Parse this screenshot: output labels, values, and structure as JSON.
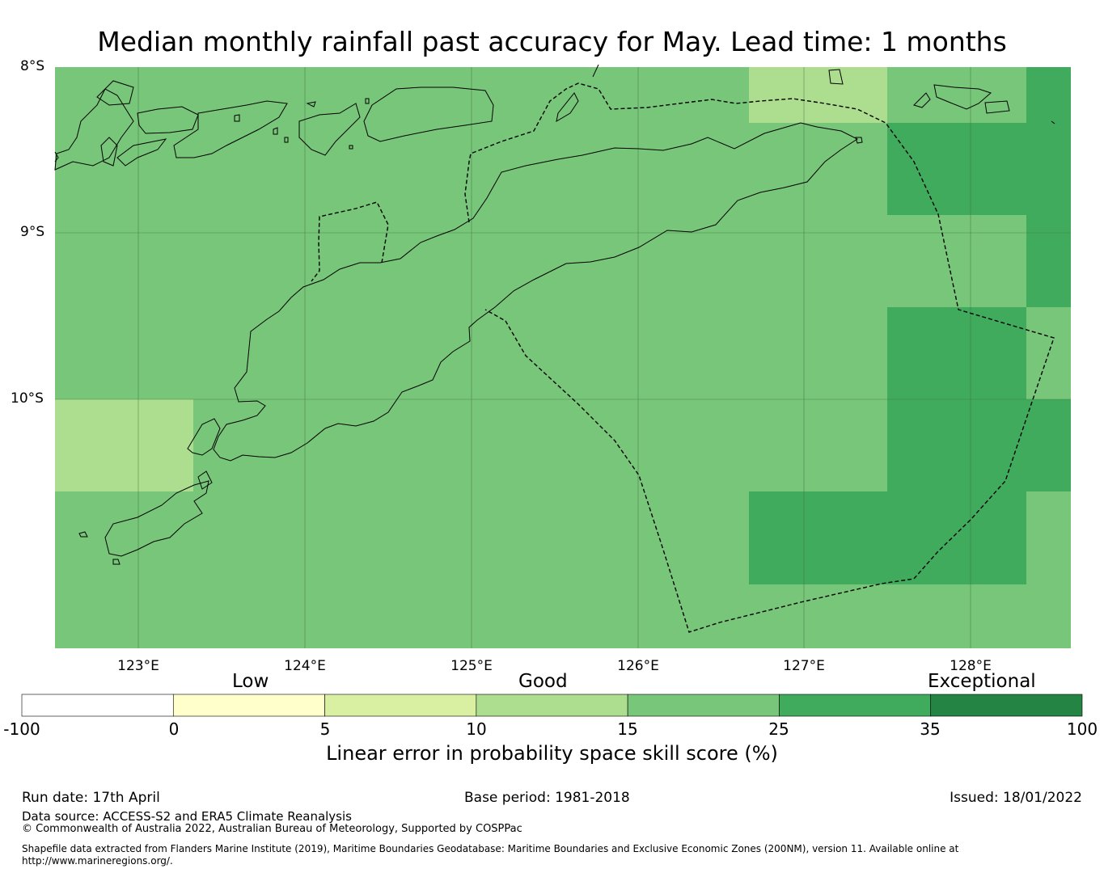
{
  "title": "Median monthly rainfall past accuracy for May. Lead time: 1 months",
  "map": {
    "lat_labels": [
      "8°S",
      "9°S",
      "10°S"
    ],
    "lon_labels": [
      "123°E",
      "124°E",
      "125°E",
      "126°E",
      "127°E",
      "128°E"
    ],
    "extent": {
      "lon_min": 122.5,
      "lon_max": 128.6,
      "lat_max": -8.0,
      "lat_min": -11.5
    }
  },
  "colorbar": {
    "category_labels": [
      "Low",
      "Good",
      "Exceptional"
    ],
    "ticks": [
      "-100",
      "0",
      "5",
      "10",
      "15",
      "25",
      "35",
      "100"
    ],
    "colors": [
      "#ffffff",
      "#ffffcc",
      "#d9f0a3",
      "#addd8e",
      "#78c679",
      "#41ab5d",
      "#238443"
    ],
    "label": "Linear error in probability space skill score (%)"
  },
  "footer": {
    "run_date": "Run date: 17th April",
    "base_period": "Base period: 1981-2018",
    "issued": "Issued: 18/01/2022",
    "data_source": "Data source: ACCESS-S2 and ERA5 Climate Reanalysis",
    "copyright": "© Commonwealth of Australia 2022, Australian Bureau of Meteorology, Supported by COSPPac",
    "shapefile_line1": "Shapefile data extracted from Flanders Marine Institute (2019), Maritime Boundaries Geodatabase: Maritime Boundaries and Exclusive Economic Zones (200NM), version 11. Available online at",
    "shapefile_line2": "http://www.marineregions.org/."
  }
}
